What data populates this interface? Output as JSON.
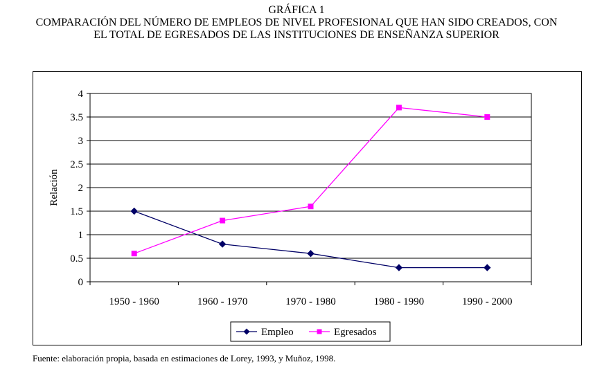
{
  "header": {
    "kicker": "GRÁFICA 1",
    "line1": "COMPARACIÓN DEL NÚMERO DE EMPLEOS DE NIVEL PROFESIONAL QUE HAN SIDO CREADOS, CON",
    "line2": "EL TOTAL DE EGRESADOS DE LAS INSTITUCIONES DE ENSEÑANZA SUPERIOR"
  },
  "source": "Fuente: elaboración propia, basada en estimaciones de Lorey, 1993, y Muñoz, 1998.",
  "chart_data": {
    "type": "line",
    "title": "COMPARACIÓN DEL NÚMERO DE EMPLEOS DE NIVEL PROFESIONAL QUE HAN SIDO CREADOS, CON EL TOTAL DE EGRESADOS DE LAS INSTITUCIONES DE ENSEÑANZA SUPERIOR",
    "xlabel": "",
    "ylabel": "Relación",
    "categories": [
      "1950 - 1960",
      "1960 - 1970",
      "1970 - 1980",
      "1980 - 1990",
      "1990 - 2000"
    ],
    "ylim": [
      0,
      4
    ],
    "yticks": [
      "0",
      "0.5",
      "1",
      "1.5",
      "2",
      "2.5",
      "3",
      "3.5",
      "4"
    ],
    "grid": true,
    "legend_position": "bottom",
    "series": [
      {
        "name": "Empleo",
        "color": "#000066",
        "marker": "diamond",
        "values": [
          1.5,
          0.8,
          0.6,
          0.3,
          0.3
        ]
      },
      {
        "name": "Egresados",
        "color": "#ff00ff",
        "marker": "square",
        "values": [
          0.6,
          1.3,
          1.6,
          3.7,
          3.5
        ]
      }
    ]
  }
}
